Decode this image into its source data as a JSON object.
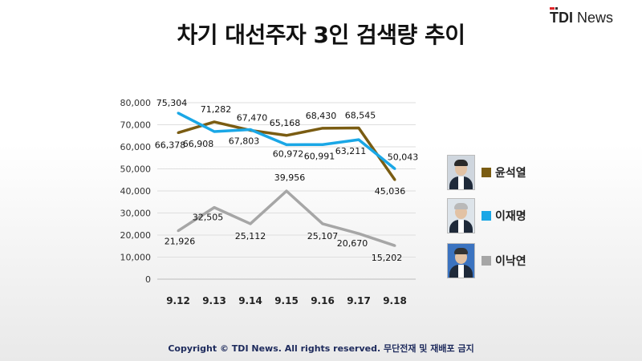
{
  "title": "차기 대선주자 3인 검색량 추이",
  "logo": {
    "brand": "TDI",
    "suffix": "News"
  },
  "footer": "Copyright © TDI News. All rights reserved. 무단전재 및 재배포 금지",
  "chart_data": {
    "type": "line",
    "title": "차기 대선주자 3인 검색량 추이",
    "categories": [
      "9.12",
      "9.13",
      "9.14",
      "9.15",
      "9.16",
      "9.17",
      "9.18"
    ],
    "y_ticks": [
      "80,000",
      "70,000",
      "60,000",
      "50,000",
      "40,000",
      "30,000",
      "20,000",
      "10,000",
      "0"
    ],
    "ylim": [
      0,
      80000
    ],
    "grid": true,
    "legend_position": "right",
    "series": [
      {
        "name": "윤석열",
        "color": "#7a5c12",
        "values": [
          66378,
          71282,
          67470,
          65168,
          68430,
          68545,
          45036
        ],
        "labels": [
          "66,378",
          "71,282",
          "67,470",
          "65,168",
          "68,430",
          "68,545",
          "45,036"
        ]
      },
      {
        "name": "이재명",
        "color": "#1aa7e6",
        "values": [
          75304,
          66908,
          67803,
          60972,
          60991,
          63211,
          50043
        ],
        "labels": [
          "75,304",
          "66,908",
          "67,803",
          "60,972",
          "60,991",
          "63,211",
          "50,043"
        ]
      },
      {
        "name": "이낙연",
        "color": "#a6a6a6",
        "values": [
          21926,
          32505,
          25112,
          39956,
          25107,
          20670,
          15202
        ],
        "labels": [
          "21,926",
          "32,505",
          "25,112",
          "39,956",
          "25,107",
          "20,670",
          "15,202"
        ]
      }
    ]
  }
}
